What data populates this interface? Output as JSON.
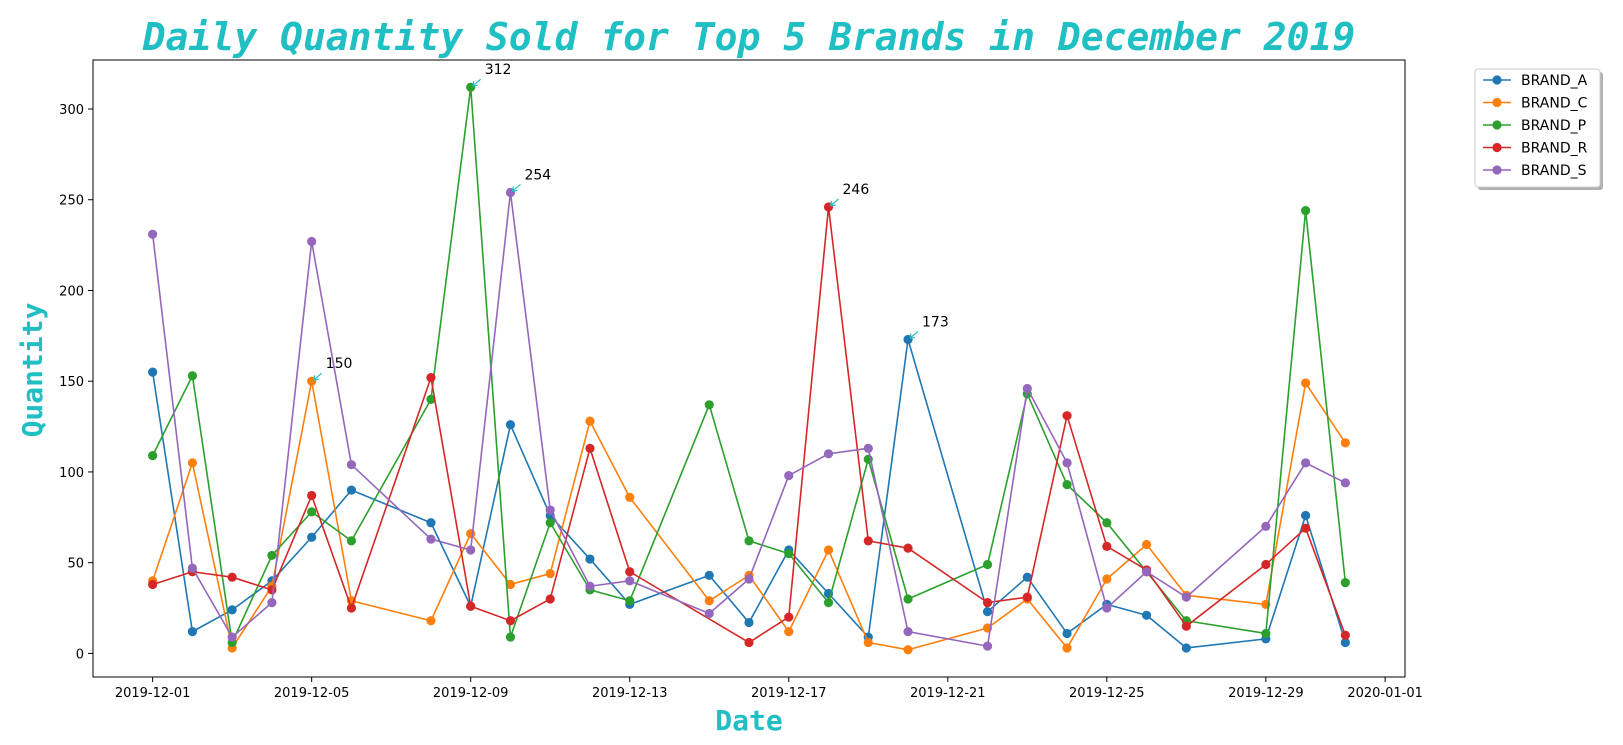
{
  "chart_data": {
    "type": "line",
    "title": "Daily Quantity Sold for Top 5 Brands in December 2019",
    "xlabel": "Date",
    "ylabel": "Quantity",
    "ylim": [
      -13,
      327
    ],
    "xlim": [
      "2019-11-29",
      "2020-01-01"
    ],
    "x_ticks": [
      "2019-12-01",
      "2019-12-05",
      "2019-12-09",
      "2019-12-13",
      "2019-12-17",
      "2019-12-21",
      "2019-12-25",
      "2019-12-29",
      "2020-01-01"
    ],
    "y_ticks": [
      0,
      50,
      100,
      150,
      200,
      250,
      300
    ],
    "grid": false,
    "legend_position": "outside top-right",
    "series": [
      {
        "name": "BRAND_A",
        "color": "#1f77b4",
        "points": [
          [
            "2019-12-01",
            155
          ],
          [
            "2019-12-02",
            12
          ],
          [
            "2019-12-03",
            24
          ],
          [
            "2019-12-04",
            40
          ],
          [
            "2019-12-05",
            64
          ],
          [
            "2019-12-06",
            90
          ],
          [
            "2019-12-08",
            72
          ],
          [
            "2019-12-09",
            26
          ],
          [
            "2019-12-10",
            126
          ],
          [
            "2019-12-11",
            76
          ],
          [
            "2019-12-12",
            52
          ],
          [
            "2019-12-13",
            27
          ],
          [
            "2019-12-15",
            43
          ],
          [
            "2019-12-16",
            17
          ],
          [
            "2019-12-17",
            57
          ],
          [
            "2019-12-18",
            33
          ],
          [
            "2019-12-19",
            9
          ],
          [
            "2019-12-20",
            173
          ],
          [
            "2019-12-22",
            23
          ],
          [
            "2019-12-23",
            42
          ],
          [
            "2019-12-24",
            11
          ],
          [
            "2019-12-25",
            27
          ],
          [
            "2019-12-26",
            21
          ],
          [
            "2019-12-27",
            3
          ],
          [
            "2019-12-29",
            8
          ],
          [
            "2019-12-30",
            76
          ],
          [
            "2019-12-31",
            6
          ]
        ]
      },
      {
        "name": "BRAND_C",
        "color": "#ff7f0e",
        "points": [
          [
            "2019-12-01",
            40
          ],
          [
            "2019-12-02",
            105
          ],
          [
            "2019-12-03",
            3
          ],
          [
            "2019-12-04",
            37
          ],
          [
            "2019-12-05",
            150
          ],
          [
            "2019-12-06",
            29
          ],
          [
            "2019-12-08",
            18
          ],
          [
            "2019-12-09",
            66
          ],
          [
            "2019-12-10",
            38
          ],
          [
            "2019-12-11",
            44
          ],
          [
            "2019-12-12",
            128
          ],
          [
            "2019-12-13",
            86
          ],
          [
            "2019-12-15",
            29
          ],
          [
            "2019-12-16",
            43
          ],
          [
            "2019-12-17",
            12
          ],
          [
            "2019-12-18",
            57
          ],
          [
            "2019-12-19",
            6
          ],
          [
            "2019-12-20",
            2
          ],
          [
            "2019-12-22",
            14
          ],
          [
            "2019-12-23",
            30
          ],
          [
            "2019-12-24",
            3
          ],
          [
            "2019-12-25",
            41
          ],
          [
            "2019-12-26",
            60
          ],
          [
            "2019-12-27",
            32
          ],
          [
            "2019-12-29",
            27
          ],
          [
            "2019-12-30",
            149
          ],
          [
            "2019-12-31",
            116
          ]
        ]
      },
      {
        "name": "BRAND_P",
        "color": "#2ca02c",
        "points": [
          [
            "2019-12-01",
            109
          ],
          [
            "2019-12-02",
            153
          ],
          [
            "2019-12-03",
            6
          ],
          [
            "2019-12-04",
            54
          ],
          [
            "2019-12-05",
            78
          ],
          [
            "2019-12-06",
            62
          ],
          [
            "2019-12-08",
            140
          ],
          [
            "2019-12-09",
            312
          ],
          [
            "2019-12-10",
            9
          ],
          [
            "2019-12-11",
            72
          ],
          [
            "2019-12-12",
            35
          ],
          [
            "2019-12-13",
            29
          ],
          [
            "2019-12-15",
            137
          ],
          [
            "2019-12-16",
            62
          ],
          [
            "2019-12-17",
            55
          ],
          [
            "2019-12-18",
            28
          ],
          [
            "2019-12-19",
            107
          ],
          [
            "2019-12-20",
            30
          ],
          [
            "2019-12-22",
            49
          ],
          [
            "2019-12-23",
            143
          ],
          [
            "2019-12-24",
            93
          ],
          [
            "2019-12-25",
            72
          ],
          [
            "2019-12-26",
            45
          ],
          [
            "2019-12-27",
            18
          ],
          [
            "2019-12-29",
            11
          ],
          [
            "2019-12-30",
            244
          ],
          [
            "2019-12-31",
            39
          ]
        ]
      },
      {
        "name": "BRAND_R",
        "color": "#d62728",
        "points": [
          [
            "2019-12-01",
            38
          ],
          [
            "2019-12-02",
            45
          ],
          [
            "2019-12-03",
            42
          ],
          [
            "2019-12-04",
            35
          ],
          [
            "2019-12-05",
            87
          ],
          [
            "2019-12-06",
            25
          ],
          [
            "2019-12-08",
            152
          ],
          [
            "2019-12-09",
            26
          ],
          [
            "2019-12-10",
            18
          ],
          [
            "2019-12-11",
            30
          ],
          [
            "2019-12-12",
            113
          ],
          [
            "2019-12-13",
            45
          ],
          [
            "2019-12-16",
            6
          ],
          [
            "2019-12-17",
            20
          ],
          [
            "2019-12-18",
            246
          ],
          [
            "2019-12-19",
            62
          ],
          [
            "2019-12-20",
            58
          ],
          [
            "2019-12-22",
            28
          ],
          [
            "2019-12-23",
            31
          ],
          [
            "2019-12-24",
            131
          ],
          [
            "2019-12-25",
            59
          ],
          [
            "2019-12-26",
            46
          ],
          [
            "2019-12-27",
            15
          ],
          [
            "2019-12-29",
            49
          ],
          [
            "2019-12-30",
            69
          ],
          [
            "2019-12-31",
            10
          ]
        ]
      },
      {
        "name": "BRAND_S",
        "color": "#9467bd",
        "points": [
          [
            "2019-12-01",
            231
          ],
          [
            "2019-12-02",
            47
          ],
          [
            "2019-12-03",
            9
          ],
          [
            "2019-12-04",
            28
          ],
          [
            "2019-12-05",
            227
          ],
          [
            "2019-12-06",
            104
          ],
          [
            "2019-12-08",
            63
          ],
          [
            "2019-12-09",
            57
          ],
          [
            "2019-12-10",
            254
          ],
          [
            "2019-12-11",
            79
          ],
          [
            "2019-12-12",
            37
          ],
          [
            "2019-12-13",
            40
          ],
          [
            "2019-12-15",
            22
          ],
          [
            "2019-12-16",
            41
          ],
          [
            "2019-12-17",
            98
          ],
          [
            "2019-12-18",
            110
          ],
          [
            "2019-12-19",
            113
          ],
          [
            "2019-12-20",
            12
          ],
          [
            "2019-12-22",
            4
          ],
          [
            "2019-12-23",
            146
          ],
          [
            "2019-12-24",
            105
          ],
          [
            "2019-12-25",
            25
          ],
          [
            "2019-12-26",
            45
          ],
          [
            "2019-12-27",
            31
          ],
          [
            "2019-12-29",
            70
          ],
          [
            "2019-12-30",
            105
          ],
          [
            "2019-12-31",
            94
          ]
        ]
      }
    ],
    "annotations": [
      {
        "x": "2019-12-05",
        "y": 150,
        "text": "150",
        "color": "#1fbfc4"
      },
      {
        "x": "2019-12-09",
        "y": 312,
        "text": "312",
        "color": "#1fbfc4"
      },
      {
        "x": "2019-12-10",
        "y": 254,
        "text": "254",
        "color": "#1fbfc4"
      },
      {
        "x": "2019-12-18",
        "y": 246,
        "text": "246",
        "color": "#1fbfc4"
      },
      {
        "x": "2019-12-20",
        "y": 173,
        "text": "173",
        "color": "#1fbfc4"
      }
    ]
  }
}
